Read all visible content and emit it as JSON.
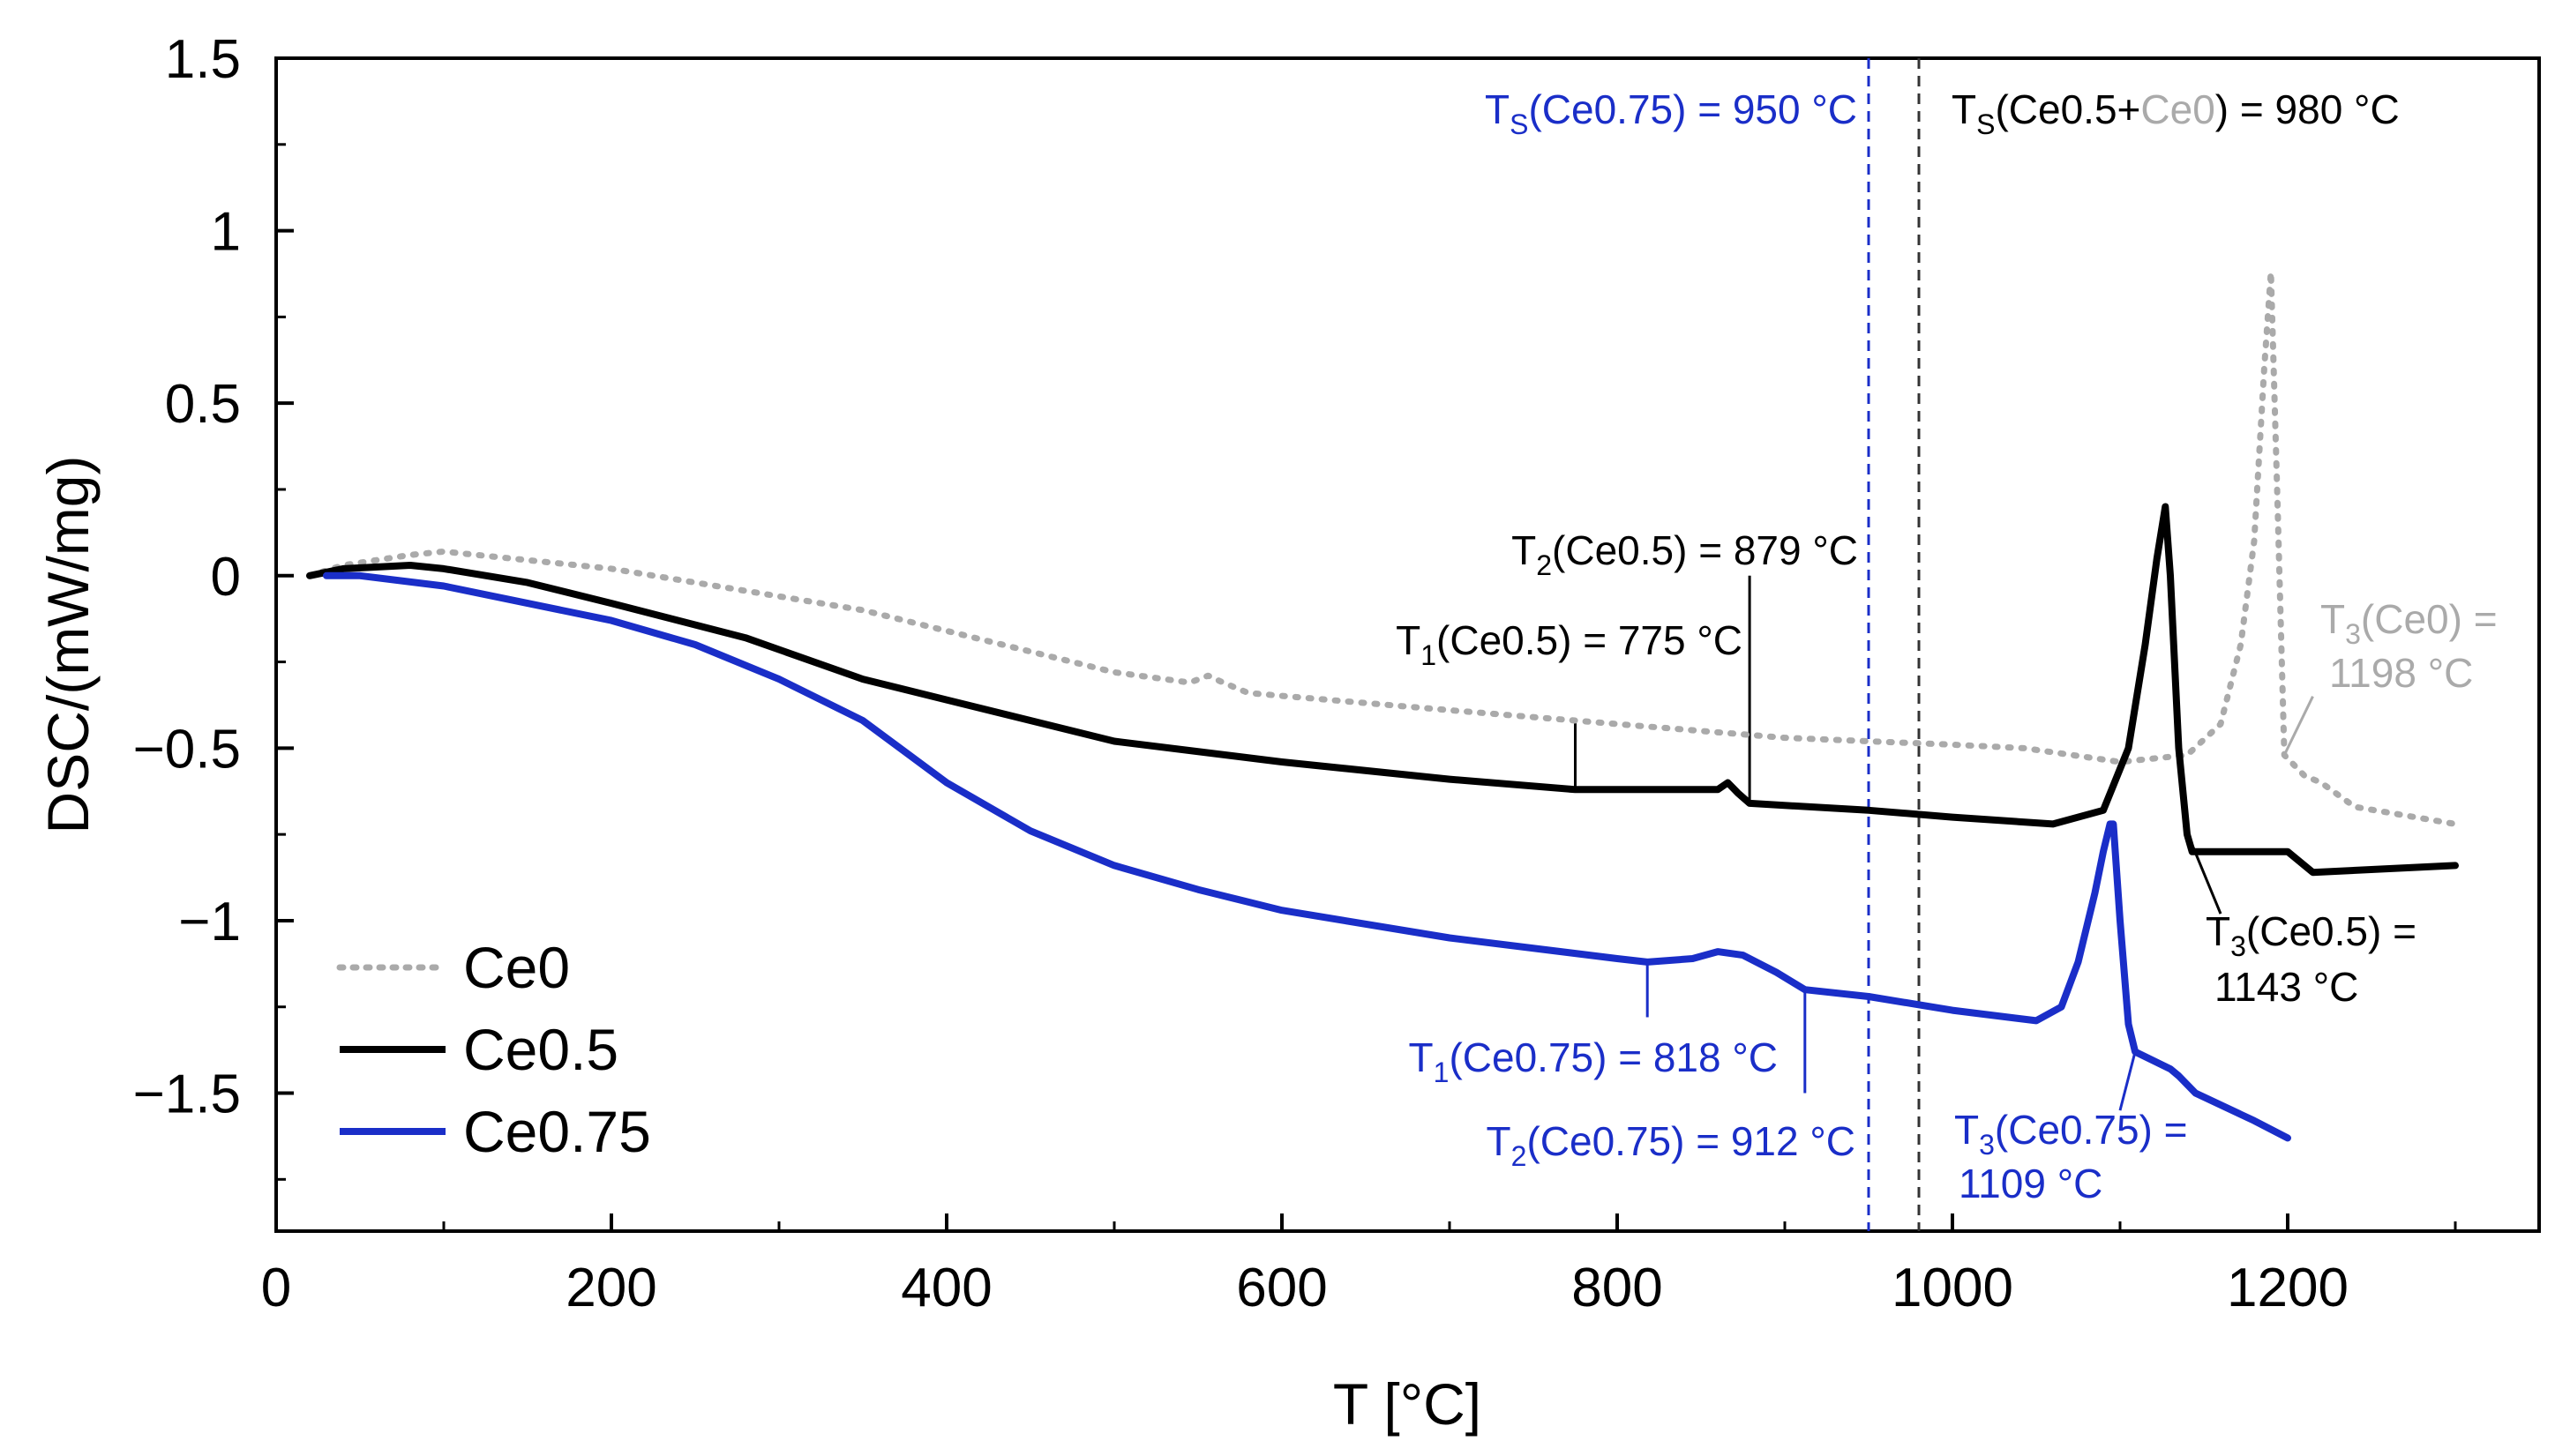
{
  "chart_data": {
    "type": "line",
    "title": "",
    "xlabel": "T [°C]",
    "ylabel": "DSC/(mW/mg)",
    "xlim": [
      0,
      1350
    ],
    "ylim": [
      -1.9,
      1.5
    ],
    "xticks": [
      0,
      200,
      400,
      600,
      800,
      1000,
      1200
    ],
    "yticks": [
      1.5,
      1,
      0.5,
      0,
      -0.5,
      -1,
      -1.5
    ],
    "xtick_labels": [
      "0",
      "200",
      "400",
      "600",
      "800",
      "1000",
      "1200"
    ],
    "ytick_labels": [
      "1.5",
      "1",
      "0.5",
      "0",
      "−0.5",
      "−1",
      "−1.5"
    ],
    "grid": false,
    "legend": "bottom-left",
    "series": [
      {
        "name": "Ce0",
        "color": "#aaaaaa",
        "style": "dotted",
        "x": [
          20,
          40,
          80,
          100,
          200,
          350,
          500,
          545,
          556,
          565,
          580,
          700,
          800,
          900,
          1000,
          1043,
          1100,
          1140,
          1160,
          1172,
          1180,
          1186,
          1190,
          1194,
          1198,
          1210,
          1220,
          1240,
          1300
        ],
        "y": [
          0,
          0.03,
          0.06,
          0.07,
          0.02,
          -0.1,
          -0.28,
          -0.31,
          -0.29,
          -0.31,
          -0.34,
          -0.39,
          -0.43,
          -0.47,
          -0.49,
          -0.5,
          -0.54,
          -0.52,
          -0.43,
          -0.2,
          0.1,
          0.6,
          0.88,
          0.2,
          -0.52,
          -0.58,
          -0.6,
          -0.67,
          -0.72
        ]
      },
      {
        "name": "Ce0.5",
        "color": "#000000",
        "style": "solid",
        "x": [
          20,
          40,
          80,
          100,
          150,
          200,
          280,
          350,
          400,
          500,
          600,
          700,
          775,
          860,
          866,
          872,
          879,
          950,
          1000,
          1060,
          1090,
          1105,
          1115,
          1122,
          1127,
          1130,
          1135,
          1140,
          1143,
          1150,
          1200,
          1215,
          1300
        ],
        "y": [
          0,
          0.02,
          0.03,
          0.02,
          -0.02,
          -0.08,
          -0.18,
          -0.3,
          -0.36,
          -0.48,
          -0.54,
          -0.59,
          -0.62,
          -0.62,
          -0.6,
          -0.63,
          -0.66,
          -0.68,
          -0.7,
          -0.72,
          -0.68,
          -0.5,
          -0.2,
          0.05,
          0.2,
          0.0,
          -0.5,
          -0.75,
          -0.8,
          -0.8,
          -0.8,
          -0.86,
          -0.84
        ]
      },
      {
        "name": "Ce0.75",
        "color": "#1a2ec8",
        "style": "solid",
        "x": [
          30,
          50,
          100,
          200,
          250,
          300,
          350,
          400,
          450,
          500,
          550,
          600,
          700,
          800,
          818,
          845,
          860,
          875,
          895,
          912,
          950,
          1000,
          1050,
          1065,
          1075,
          1085,
          1090,
          1094,
          1096,
          1100,
          1105,
          1109,
          1130,
          1135,
          1145,
          1180,
          1200
        ],
        "y": [
          0,
          0,
          -0.03,
          -0.13,
          -0.2,
          -0.3,
          -0.42,
          -0.6,
          -0.74,
          -0.84,
          -0.91,
          -0.97,
          -1.05,
          -1.11,
          -1.12,
          -1.11,
          -1.09,
          -1.1,
          -1.15,
          -1.2,
          -1.22,
          -1.26,
          -1.29,
          -1.25,
          -1.12,
          -0.92,
          -0.8,
          -0.72,
          -0.72,
          -1.0,
          -1.3,
          -1.38,
          -1.43,
          -1.45,
          -1.5,
          -1.58,
          -1.63
        ]
      }
    ],
    "vertical_lines": [
      {
        "x": 950,
        "color": "#1a2ec8",
        "style": "dashed"
      },
      {
        "x": 980,
        "color": "#333333",
        "style": "dashed"
      }
    ],
    "annotations": [
      {
        "id": "ts-ce075",
        "color": "#1a2ec8",
        "segments": [
          {
            "t": "T"
          },
          {
            "t": "S",
            "sub": true
          },
          {
            "t": "(Ce0.75) = 950 °C"
          }
        ]
      },
      {
        "id": "ts-ce05-ce0",
        "color": "#000000",
        "segments": [
          {
            "t": "T"
          },
          {
            "t": "S",
            "sub": true
          },
          {
            "t": "(Ce0.5+"
          },
          {
            "t": "Ce0",
            "color": "#aaaaaa"
          },
          {
            "t": ") = 980 °C"
          }
        ]
      },
      {
        "id": "t2-ce05",
        "color": "#000000",
        "segments": [
          {
            "t": "T"
          },
          {
            "t": "2",
            "sub": true
          },
          {
            "t": "(Ce0.5) = 879 °C"
          }
        ]
      },
      {
        "id": "t1-ce05",
        "color": "#000000",
        "segments": [
          {
            "t": "T"
          },
          {
            "t": "1",
            "sub": true
          },
          {
            "t": "(Ce0.5) = 775 °C"
          }
        ]
      },
      {
        "id": "t3-ce0-line1",
        "color": "#aaaaaa",
        "segments": [
          {
            "t": "T"
          },
          {
            "t": "3",
            "sub": true
          },
          {
            "t": "(Ce0) ="
          }
        ]
      },
      {
        "id": "t3-ce0-line2",
        "color": "#aaaaaa",
        "segments": [
          {
            "t": "1198 °C"
          }
        ]
      },
      {
        "id": "t3-ce05-line1",
        "color": "#000000",
        "segments": [
          {
            "t": "T"
          },
          {
            "t": "3",
            "sub": true
          },
          {
            "t": "(Ce0.5) ="
          }
        ]
      },
      {
        "id": "t3-ce05-line2",
        "color": "#000000",
        "segments": [
          {
            "t": "1143 °C"
          }
        ]
      },
      {
        "id": "t1-ce075",
        "color": "#1a2ec8",
        "segments": [
          {
            "t": "T"
          },
          {
            "t": "1",
            "sub": true
          },
          {
            "t": "(Ce0.75) = 818 °C"
          }
        ]
      },
      {
        "id": "t2-ce075",
        "color": "#1a2ec8",
        "segments": [
          {
            "t": "T"
          },
          {
            "t": "2",
            "sub": true
          },
          {
            "t": "(Ce0.75) = 912 °C"
          }
        ]
      },
      {
        "id": "t3-ce075-line1",
        "color": "#1a2ec8",
        "segments": [
          {
            "t": "T"
          },
          {
            "t": "3",
            "sub": true
          },
          {
            "t": "(Ce0.75) ="
          }
        ]
      },
      {
        "id": "t3-ce075-line2",
        "color": "#1a2ec8",
        "segments": [
          {
            "t": "1109 °C"
          }
        ]
      }
    ],
    "leaders": [
      {
        "color": "#000000",
        "x": 775,
        "y1": -0.62,
        "y2": -0.42
      },
      {
        "color": "#000000",
        "x": 879,
        "y1": -0.66,
        "y2": -0.0
      },
      {
        "color": "#1a2ec8",
        "x": 818,
        "y1": -1.12,
        "y2": -1.28
      },
      {
        "color": "#1a2ec8",
        "x": 912,
        "y1": -1.2,
        "y2": -1.5
      },
      {
        "color": "#000000",
        "x1": 1143,
        "y1": -0.78,
        "x2": 1160,
        "y2": -0.98
      },
      {
        "color": "#aaaaaa",
        "x1": 1198,
        "y1": -0.52,
        "x2": 1215,
        "y2": -0.35
      },
      {
        "color": "#1a2ec8",
        "x1": 1109,
        "y1": -1.38,
        "x2": 1100,
        "y2": -1.55
      }
    ]
  }
}
